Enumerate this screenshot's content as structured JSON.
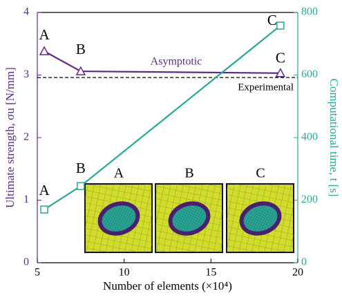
{
  "chart_data": {
    "type": "line",
    "xlabel": "Number of elements (×10⁴)",
    "ylabel": "Ultimate strength, σu [N/mm]",
    "y2label": "Computational time, t [s]",
    "x": [
      5.4,
      7.5,
      19
    ],
    "xlim": [
      5,
      20
    ],
    "xticks": [
      5,
      10,
      15,
      20
    ],
    "ylim": [
      0,
      4
    ],
    "yticks": [
      0,
      1,
      2,
      3,
      4
    ],
    "y2lim": [
      0,
      800
    ],
    "y2ticks": [
      0,
      200,
      400,
      600,
      800
    ],
    "series": [
      {
        "name": "Asymptotic",
        "color": "#5b2a86",
        "axis": "y",
        "values": [
          3.38,
          3.06,
          3.03
        ],
        "point_labels": [
          "A",
          "B",
          "C"
        ]
      },
      {
        "color": "#26a897",
        "axis": "y2",
        "values": [
          170,
          245,
          758
        ],
        "point_labels": [
          "A",
          "B",
          "C"
        ]
      }
    ],
    "reference_line": {
      "label": "Experimental",
      "value": 2.96
    },
    "insets": [
      "A",
      "B",
      "C"
    ]
  }
}
